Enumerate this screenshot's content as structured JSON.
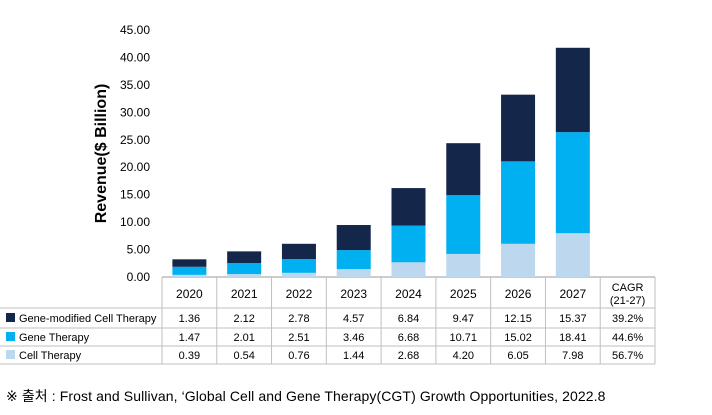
{
  "chart_data": {
    "type": "bar",
    "stacked": true,
    "ylabel": "Revenue($ Billion)",
    "ylim": [
      0,
      45
    ],
    "yticks": [
      "0.00",
      "5.00",
      "10.00",
      "15.00",
      "20.00",
      "25.00",
      "30.00",
      "35.00",
      "40.00",
      "45.00"
    ],
    "ytick_values": [
      0,
      5,
      10,
      15,
      20,
      25,
      30,
      35,
      40,
      45
    ],
    "categories": [
      "2020",
      "2021",
      "2022",
      "2023",
      "2024",
      "2025",
      "2026",
      "2027"
    ],
    "series": [
      {
        "name": "Cell Therapy",
        "color": "#bdd7ee",
        "values": [
          0.39,
          0.54,
          0.76,
          1.44,
          2.68,
          4.2,
          6.05,
          7.98
        ],
        "labels": [
          "0.39",
          "0.54",
          "0.76",
          "1.44",
          "2.68",
          "4.20",
          "6.05",
          "7.98"
        ],
        "cagr": "56.7%"
      },
      {
        "name": "Gene Therapy",
        "color": "#00b0f0",
        "values": [
          1.47,
          2.01,
          2.51,
          3.46,
          6.68,
          10.71,
          15.02,
          18.41
        ],
        "labels": [
          "1.47",
          "2.01",
          "2.51",
          "3.46",
          "6.68",
          "10.71",
          "15.02",
          "18.41"
        ],
        "cagr": "44.6%"
      },
      {
        "name": "Gene-modified Cell Therapy",
        "color": "#14264a",
        "values": [
          1.36,
          2.12,
          2.78,
          4.57,
          6.84,
          9.47,
          12.15,
          15.37
        ],
        "labels": [
          "1.36",
          "2.12",
          "2.78",
          "4.57",
          "6.84",
          "9.47",
          "12.15",
          "15.37"
        ],
        "cagr": "39.2%"
      }
    ],
    "table_rows_order": [
      "Gene-modified Cell Therapy",
      "Gene Therapy",
      "Cell Therapy"
    ],
    "cagr_header": [
      "CAGR",
      "(21-27)"
    ],
    "grid": false
  },
  "source_note": "※ 출처 : Frost and Sullivan, ‘Global Cell and Gene Therapy(CGT) Growth Opportunities, 2022.8"
}
